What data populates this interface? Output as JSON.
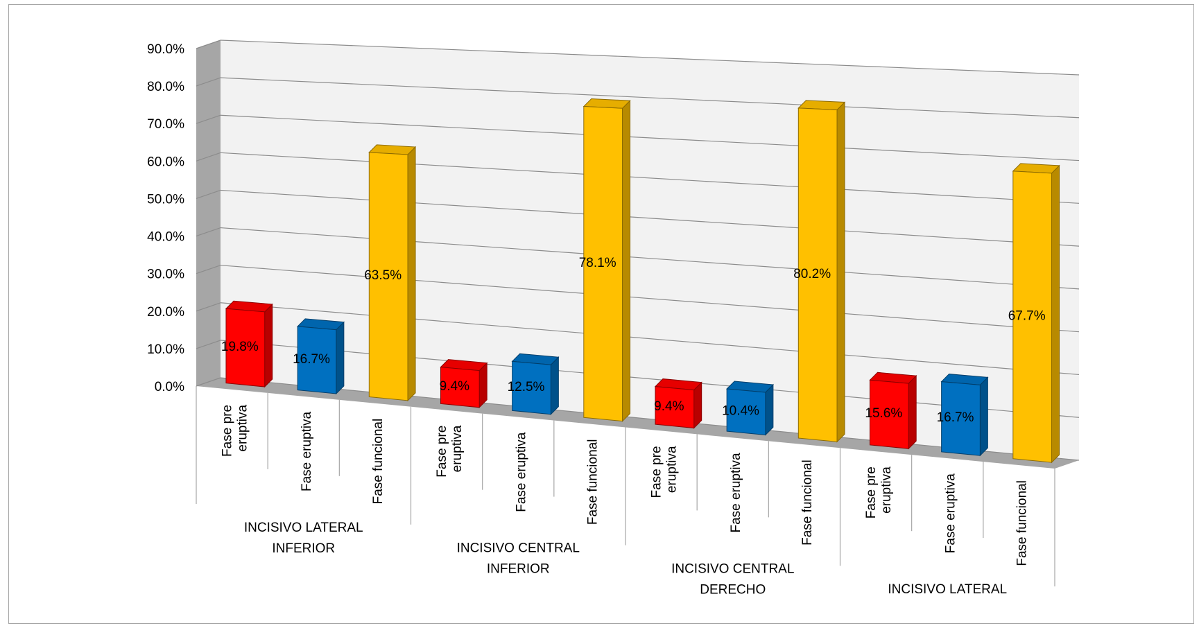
{
  "chart_data": {
    "type": "bar",
    "style": "3d-column",
    "y_tick_labels": [
      "0.0%",
      "10.0%",
      "20.0%",
      "30.0%",
      "40.0%",
      "50.0%",
      "60.0%",
      "70.0%",
      "80.0%",
      "90.0%"
    ],
    "ylim": [
      0,
      90
    ],
    "grid": true,
    "groups": [
      {
        "label": [
          "INCISIVO LATERAL",
          "INFERIOR"
        ],
        "bars": [
          {
            "category": [
              "Fase pre",
              "eruptiva"
            ],
            "value": 19.8,
            "label": "19.8%",
            "color": "#ff0000"
          },
          {
            "category": [
              "Fase eruptiva"
            ],
            "value": 16.7,
            "label": "16.7%",
            "color": "#0070c0"
          },
          {
            "category": [
              "Fase funcional"
            ],
            "value": 63.5,
            "label": "63.5%",
            "color": "#ffc000"
          }
        ]
      },
      {
        "label": [
          "INCISIVO CENTRAL",
          "INFERIOR"
        ],
        "bars": [
          {
            "category": [
              "Fase pre",
              "eruptiva"
            ],
            "value": 9.4,
            "label": "9.4%",
            "color": "#ff0000"
          },
          {
            "category": [
              "Fase eruptiva"
            ],
            "value": 12.5,
            "label": "12.5%",
            "color": "#0070c0"
          },
          {
            "category": [
              "Fase funcional"
            ],
            "value": 78.1,
            "label": "78.1%",
            "color": "#ffc000"
          }
        ]
      },
      {
        "label": [
          "INCISIVO CENTRAL",
          "DERECHO"
        ],
        "bars": [
          {
            "category": [
              "Fase pre",
              "eruptiva"
            ],
            "value": 9.4,
            "label": "9.4%",
            "color": "#ff0000"
          },
          {
            "category": [
              "Fase eruptiva"
            ],
            "value": 10.4,
            "label": "10.4%",
            "color": "#0070c0"
          },
          {
            "category": [
              "Fase funcional"
            ],
            "value": 80.2,
            "label": "80.2%",
            "color": "#ffc000"
          }
        ]
      },
      {
        "label": [
          "INCISIVO LATERAL"
        ],
        "bars": [
          {
            "category": [
              "Fase pre",
              "eruptiva"
            ],
            "value": 15.6,
            "label": "15.6%",
            "color": "#ff0000"
          },
          {
            "category": [
              "Fase eruptiva"
            ],
            "value": 16.7,
            "label": "16.7%",
            "color": "#0070c0"
          },
          {
            "category": [
              "Fase funcional"
            ],
            "value": 67.7,
            "label": "67.7%",
            "color": "#ffc000"
          }
        ]
      }
    ]
  }
}
